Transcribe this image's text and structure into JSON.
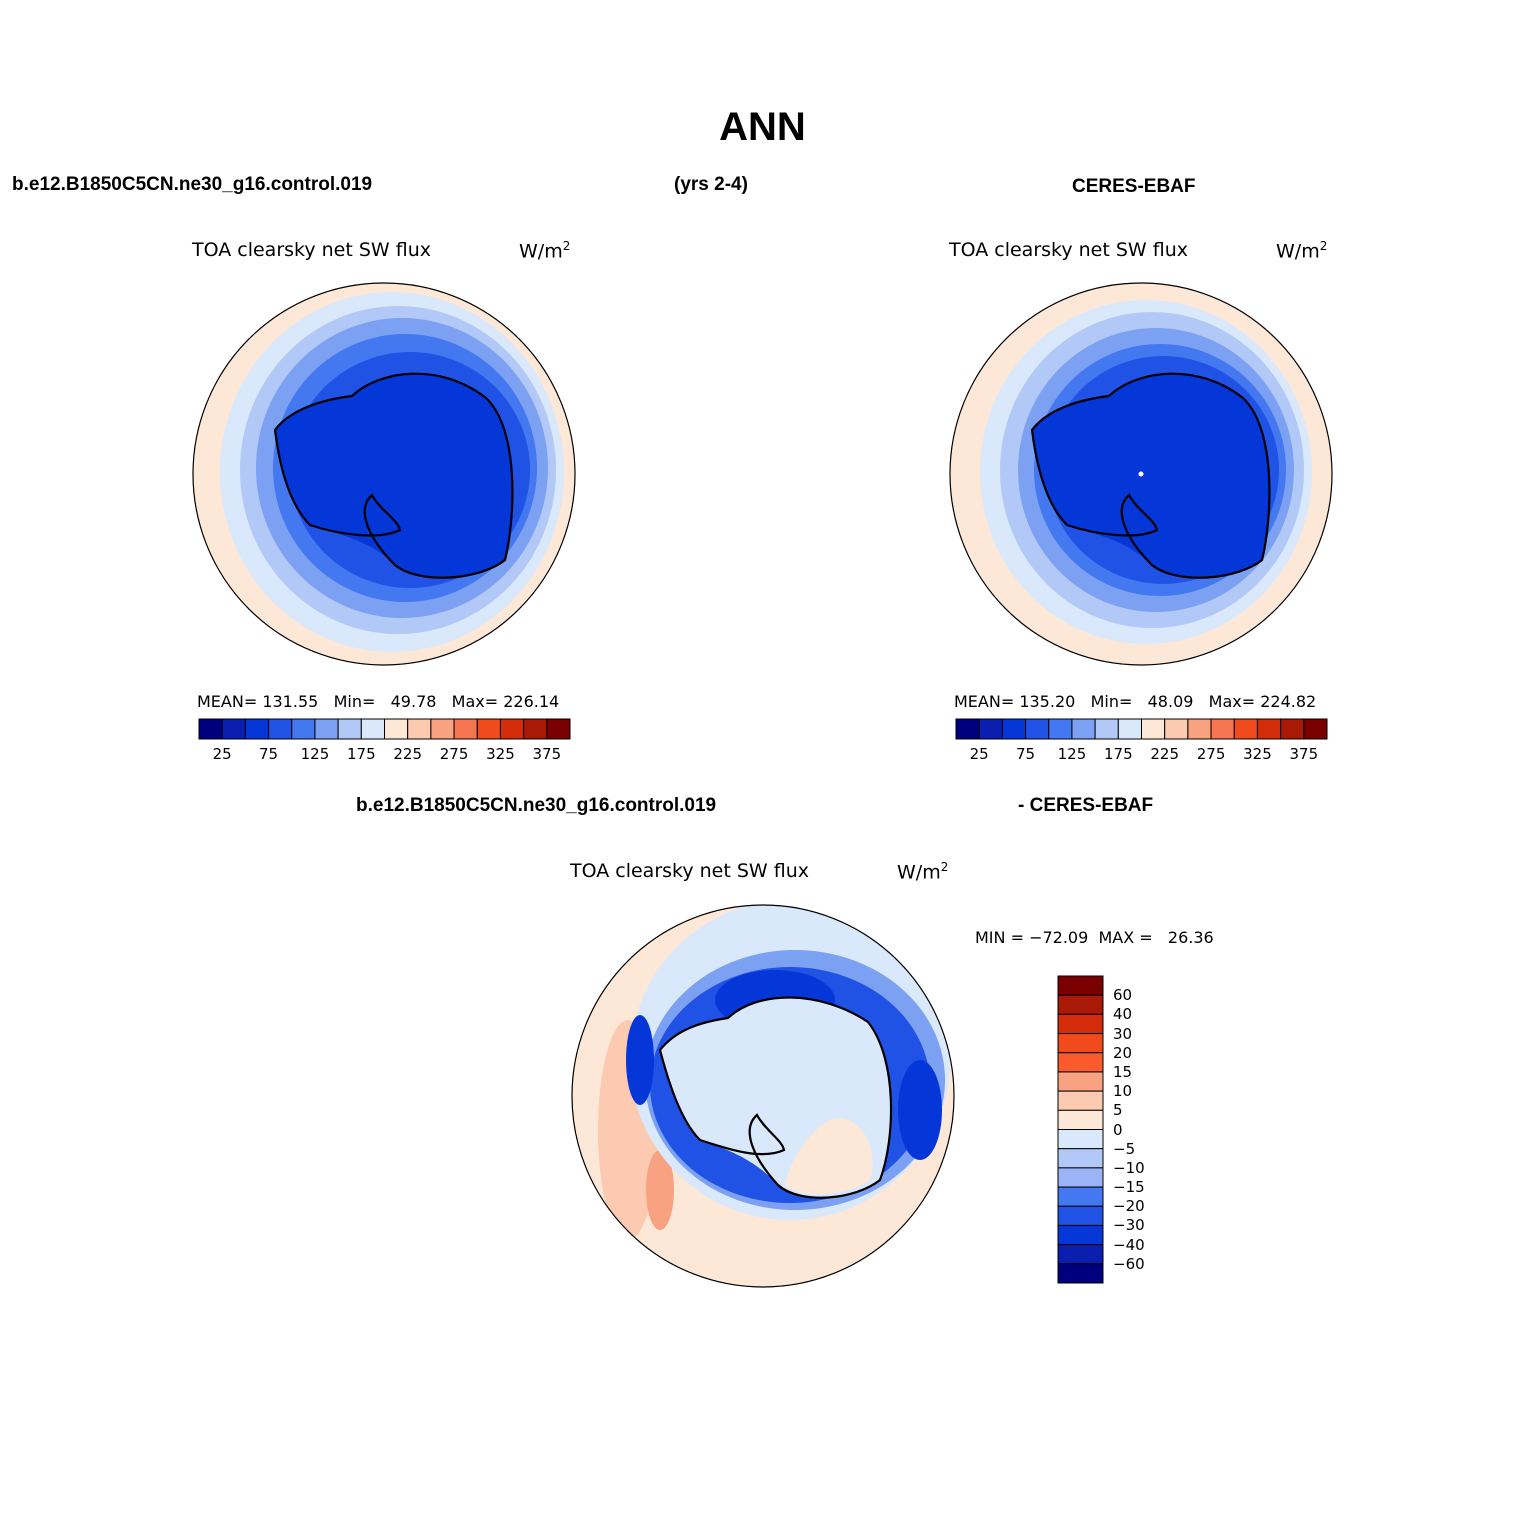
{
  "figure": {
    "title": "ANN",
    "left_header": "b.e12.B1850C5CN.ne30_g16.control.019",
    "center_header": "(yrs 2-4)",
    "right_header": "CERES-EBAF",
    "diff_header_left": "b.e12.B1850C5CN.ne30_g16.control.019",
    "diff_header_right": "- CERES-EBAF"
  },
  "panels": [
    {
      "name": "model",
      "variable": "TOA clearsky net SW flux",
      "units": "W/m",
      "units_exp": "2",
      "stats": "MEAN= 131.55   Min=   49.78   Max= 226.14"
    },
    {
      "name": "obs",
      "variable": "TOA clearsky net SW flux",
      "units": "W/m",
      "units_exp": "2",
      "stats": "MEAN= 135.20   Min=   48.09   Max= 224.82"
    },
    {
      "name": "diff",
      "variable": "TOA clearsky net SW flux",
      "units": "W/m",
      "units_exp": "2",
      "stats": "MIN = −72.09  MAX =   26.36"
    }
  ],
  "colorbar_main": {
    "colors": [
      "#00007f",
      "#0a1fb0",
      "#0536d8",
      "#2152e6",
      "#4478f0",
      "#7ca0f2",
      "#b2c8f7",
      "#d9e8fb",
      "#fde8d8",
      "#fccab0",
      "#f8a282",
      "#f57650",
      "#f14a1c",
      "#d42c0a",
      "#a81a06",
      "#7a0000"
    ],
    "labels": [
      "25",
      "75",
      "125",
      "175",
      "225",
      "275",
      "325",
      "375"
    ]
  },
  "colorbar_diff": {
    "colors": [
      "#7a0000",
      "#a81a06",
      "#d42c0a",
      "#f14a1c",
      "#fb5a2a",
      "#f8a282",
      "#fccab0",
      "#fde8d8",
      "#d9e8fb",
      "#b2c8f7",
      "#9ab4f5",
      "#4478f0",
      "#2152e6",
      "#0536d8",
      "#0a1fb0",
      "#00007f"
    ],
    "labels": [
      "60",
      "40",
      "30",
      "20",
      "15",
      "10",
      "5",
      "0",
      "−5",
      "−10",
      "−15",
      "−20",
      "−30",
      "−40",
      "−60"
    ]
  }
}
